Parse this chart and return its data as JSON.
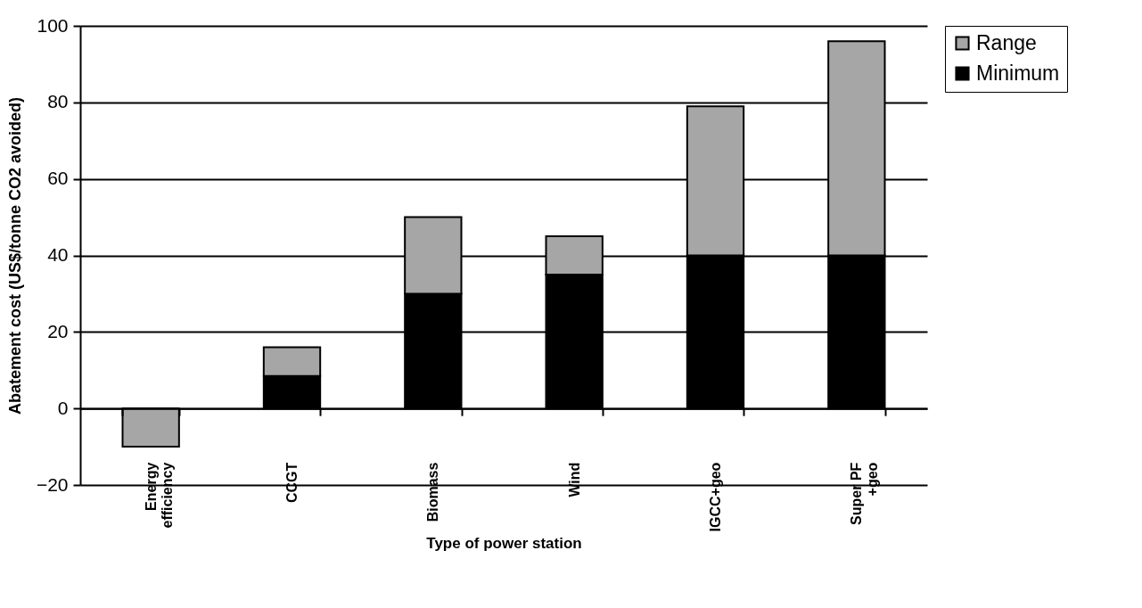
{
  "chart_data": {
    "type": "bar",
    "stacked": true,
    "xlabel": "Type of power station",
    "ylabel": "Abatement cost (US$/tonne CO2 avoided)",
    "categories": [
      "Energy efficiency",
      "CCGT",
      "Biomass",
      "Wind",
      "IGCC+geo",
      "Super PF +geo"
    ],
    "series": [
      {
        "name": "Minimum",
        "color": "#000000",
        "values": [
          0,
          8.5,
          30,
          35,
          40,
          40
        ]
      },
      {
        "name": "Range",
        "color": "#a6a6a6",
        "values": [
          -10,
          7.5,
          20,
          10,
          39,
          56
        ]
      }
    ],
    "ylim": [
      -20,
      100
    ],
    "yticks": [
      -20,
      0,
      20,
      40,
      60,
      80,
      100
    ],
    "grid": "y",
    "legend": "right"
  }
}
